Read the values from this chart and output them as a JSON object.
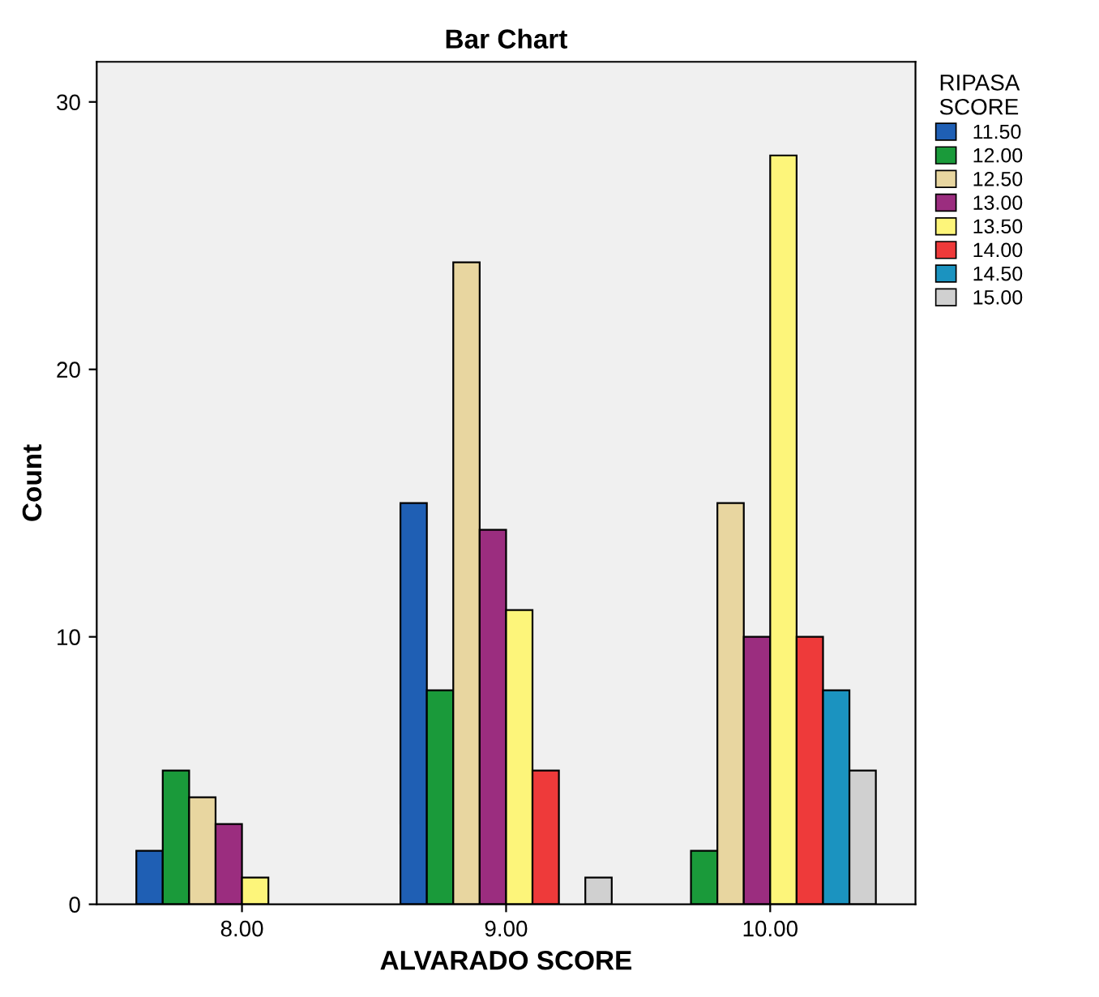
{
  "chart_data": {
    "type": "bar",
    "title": "Bar Chart",
    "xlabel": "ALVARADO SCORE",
    "ylabel": "Count",
    "legend_title": "RIPASA\nSCORE",
    "categories": [
      "8.00",
      "9.00",
      "10.00"
    ],
    "series": [
      {
        "name": "11.50",
        "color": "#1f5fb4",
        "values": [
          2,
          15,
          null
        ]
      },
      {
        "name": "12.00",
        "color": "#1a9a3a",
        "values": [
          5,
          8,
          2
        ]
      },
      {
        "name": "12.50",
        "color": "#e8d6a0",
        "values": [
          4,
          24,
          15
        ]
      },
      {
        "name": "13.00",
        "color": "#9b2d7f",
        "values": [
          3,
          14,
          10
        ]
      },
      {
        "name": "13.50",
        "color": "#fdf57a",
        "values": [
          1,
          11,
          28
        ]
      },
      {
        "name": "14.00",
        "color": "#ee3a3a",
        "values": [
          null,
          5,
          10
        ]
      },
      {
        "name": "14.50",
        "color": "#1b93c0",
        "values": [
          null,
          null,
          8
        ]
      },
      {
        "name": "15.00",
        "color": "#d0d0d0",
        "values": [
          null,
          1,
          5
        ]
      }
    ],
    "ylim": [
      0,
      31.5
    ],
    "yticks": [
      0,
      10,
      20,
      30
    ],
    "grid": false,
    "legend": "top right"
  }
}
